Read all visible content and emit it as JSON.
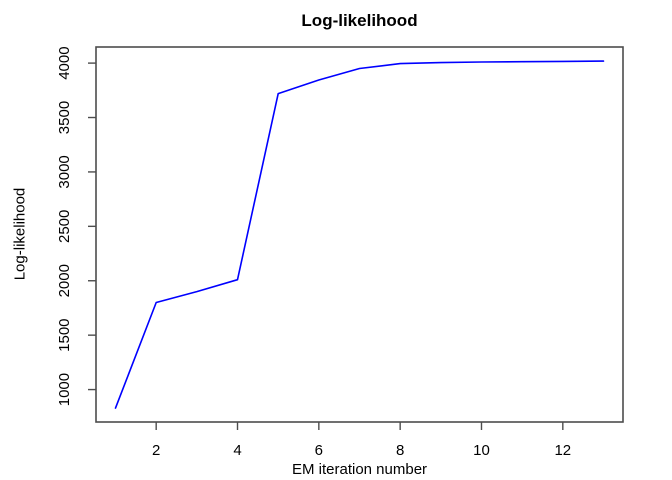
{
  "chart_data": {
    "type": "line",
    "title": "Log-likelihood",
    "xlabel": "EM iteration number",
    "ylabel": "Log-likelihood",
    "x": [
      1,
      2,
      3,
      4,
      5,
      6,
      7,
      8,
      9,
      10,
      11,
      12,
      13
    ],
    "y": [
      830,
      1800,
      1900,
      2010,
      3720,
      3845,
      3950,
      3995,
      4005,
      4010,
      4013,
      4016,
      4018
    ],
    "x_ticks": [
      2,
      4,
      6,
      8,
      10,
      12
    ],
    "y_ticks": [
      1000,
      1500,
      2000,
      2500,
      3000,
      3500,
      4000
    ],
    "xlim": [
      0.52,
      13.48
    ],
    "ylim": [
      702,
      4148
    ],
    "line_color": "#0000ff",
    "axis_color": "#4d4d4d",
    "text_color": "#000000",
    "background": "#ffffff",
    "grid": false,
    "legend": "none"
  }
}
